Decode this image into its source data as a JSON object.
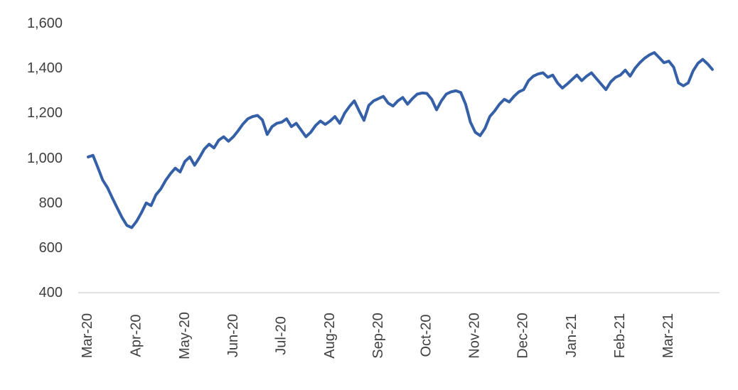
{
  "chart_data": {
    "type": "line",
    "title": "",
    "xlabel": "",
    "ylabel": "",
    "legend": "none",
    "grid": "off",
    "line_color": "#3560A8",
    "axis_line_color": "#d9d9d9",
    "label_color": "#404040",
    "ylim": [
      400,
      1600
    ],
    "y_ticks": [
      400,
      600,
      800,
      1000,
      1200,
      1400,
      1600
    ],
    "y_tick_labels": [
      "400",
      "600",
      "800",
      "1,000",
      "1,200",
      "1,400",
      "1,600"
    ],
    "x_tick_labels": [
      "Mar-20",
      "Apr-20",
      "May-20",
      "Jun-20",
      "Jul-20",
      "Aug-20",
      "Sep-20",
      "Oct-20",
      "Nov-20",
      "Dec-20",
      "Jan-21",
      "Feb-21",
      "Mar-21"
    ],
    "points_per_month": 10,
    "series": [
      {
        "name": "index-level",
        "values": [
          1005,
          1012,
          958,
          902,
          868,
          822,
          778,
          735,
          700,
          690,
          718,
          756,
          800,
          788,
          836,
          862,
          900,
          930,
          955,
          938,
          985,
          1005,
          968,
          1002,
          1040,
          1062,
          1045,
          1080,
          1095,
          1075,
          1095,
          1122,
          1152,
          1175,
          1185,
          1190,
          1170,
          1105,
          1140,
          1155,
          1160,
          1175,
          1140,
          1155,
          1125,
          1095,
          1115,
          1145,
          1165,
          1150,
          1165,
          1185,
          1155,
          1200,
          1230,
          1255,
          1210,
          1168,
          1235,
          1255,
          1265,
          1275,
          1245,
          1232,
          1255,
          1270,
          1240,
          1265,
          1285,
          1290,
          1288,
          1262,
          1215,
          1255,
          1285,
          1295,
          1300,
          1292,
          1240,
          1160,
          1115,
          1100,
          1132,
          1185,
          1210,
          1240,
          1262,
          1250,
          1275,
          1295,
          1305,
          1345,
          1365,
          1375,
          1380,
          1360,
          1370,
          1335,
          1312,
          1330,
          1350,
          1370,
          1345,
          1365,
          1380,
          1355,
          1330,
          1305,
          1340,
          1360,
          1370,
          1392,
          1365,
          1400,
          1425,
          1445,
          1460,
          1470,
          1448,
          1425,
          1432,
          1405,
          1335,
          1322,
          1335,
          1388,
          1422,
          1440,
          1420,
          1395
        ]
      }
    ]
  }
}
